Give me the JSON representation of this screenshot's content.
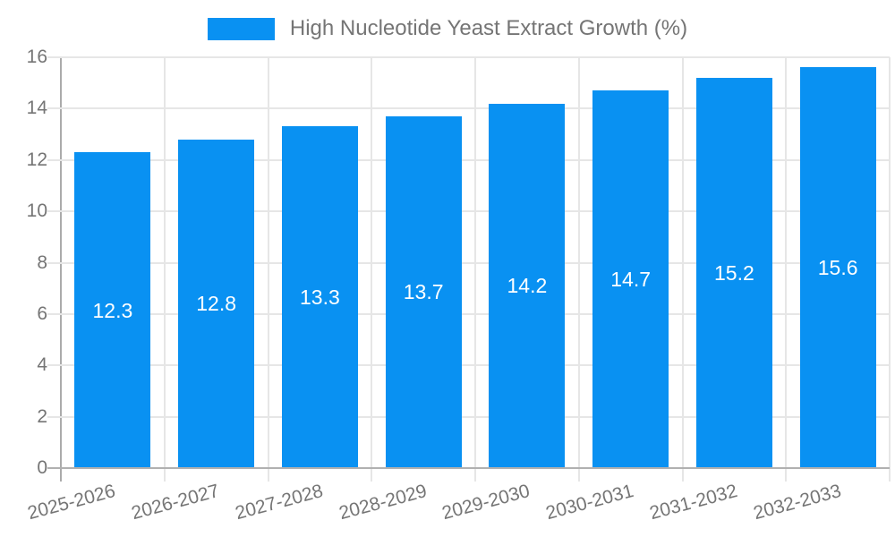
{
  "legend": {
    "label": "High Nucleotide Yeast Extract Growth (%)"
  },
  "colors": {
    "bar": "#0991f2",
    "bar_label": "#ffffff",
    "axis_text": "#757575",
    "grid": "#e6e6e6",
    "axis_line": "#b0b0b0"
  },
  "chart_data": {
    "type": "bar",
    "title": "",
    "xlabel": "",
    "ylabel": "",
    "categories": [
      "2025-2026",
      "2026-2027",
      "2027-2028",
      "2028-2029",
      "2029-2030",
      "2030-2031",
      "2031-2032",
      "2032-2033"
    ],
    "series": [
      {
        "name": "High Nucleotide Yeast Extract Growth (%)",
        "values": [
          12.3,
          12.8,
          13.3,
          13.7,
          14.2,
          14.7,
          15.2,
          15.6
        ],
        "labels": [
          "12.3",
          "12.8",
          "13.3",
          "13.7",
          "14.2",
          "14.7",
          "15.2",
          "15.6"
        ]
      }
    ],
    "ylim": [
      0,
      16
    ],
    "yticks": [
      0,
      2,
      4,
      6,
      8,
      10,
      12,
      14,
      16
    ],
    "grid": true,
    "legend_position": "top-center",
    "x_label_rotation_deg": -15,
    "bar_label_position": "center"
  }
}
